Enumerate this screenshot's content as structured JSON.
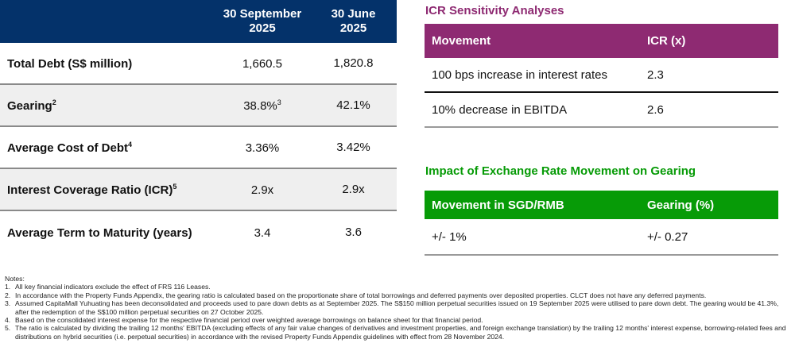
{
  "key_metrics": {
    "columns": [
      "30 September 2025",
      "30 June 2025"
    ],
    "col_lines": [
      [
        "30 September",
        "2025"
      ],
      [
        "30 June",
        "2025"
      ]
    ],
    "rows": [
      {
        "label": "Total Debt (S$ million)",
        "sup": "",
        "v1": "1,660.5",
        "v1sup": "",
        "v2": "1,820.8"
      },
      {
        "label": "Gearing",
        "sup": "2",
        "v1": "38.8%",
        "v1sup": "3",
        "v2": "42.1%"
      },
      {
        "label": "Average Cost of Debt",
        "sup": "4",
        "v1": "3.36%",
        "v1sup": "",
        "v2": "3.42%"
      },
      {
        "label": "Interest Coverage Ratio (ICR)",
        "sup": "5",
        "v1": "2.9x",
        "v1sup": "",
        "v2": "2.9x"
      },
      {
        "label": "Average Term to Maturity (years)",
        "sup": "",
        "v1": "3.4",
        "v1sup": "",
        "v2": "3.6"
      }
    ],
    "header_color": "#04326a"
  },
  "icr": {
    "title": "ICR Sensitivity Analyses",
    "headers": [
      "Movement",
      "ICR (x)"
    ],
    "rows": [
      [
        "100 bps increase in interest rates",
        "2.3"
      ],
      [
        "10% decrease in EBITDA",
        "2.6"
      ]
    ],
    "color": "#8e2a72"
  },
  "fx": {
    "title": "Impact of Exchange Rate Movement on Gearing",
    "headers": [
      "Movement in SGD/RMB",
      "Gearing (%)"
    ],
    "rows": [
      [
        "+/- 1%",
        "+/- 0.27"
      ]
    ],
    "color": "#079b07"
  },
  "notes": {
    "heading": "Notes:",
    "items": [
      {
        "n": "1.",
        "text": "All key financial indicators exclude the effect of FRS 116 Leases."
      },
      {
        "n": "2.",
        "text": "In accordance with the Property Funds Appendix, the gearing ratio is calculated based on the proportionate share of total borrowings and deferred payments over deposited properties. CLCT does not have any deferred payments."
      },
      {
        "n": "3.",
        "text": "Assumed CapitaMall Yuhuating has been deconsolidated and proceeds used to pare down debts as at September 2025. The S$150 million perpetual securities issued on 19 September 2025 were utilised to pare down debt. The gearing would be 41.3%, after the redemption of the S$100 million perpetual securities on 27 October 2025."
      },
      {
        "n": "4.",
        "text": "Based on the consolidated interest expense for the respective financial period over weighted average borrowings on balance sheet for that financial period."
      },
      {
        "n": "5.",
        "text": "The ratio is calculated by dividing the trailing 12 months' EBITDA (excluding effects of any fair value changes of derivatives and investment properties, and foreign exchange translation) by the trailing 12 months' interest expense, borrowing-related fees and distributions on hybrid securities (i.e. perpetual securities) in accordance with the revised Property Funds Appendix guidelines with effect from 28 November 2024."
      }
    ]
  }
}
